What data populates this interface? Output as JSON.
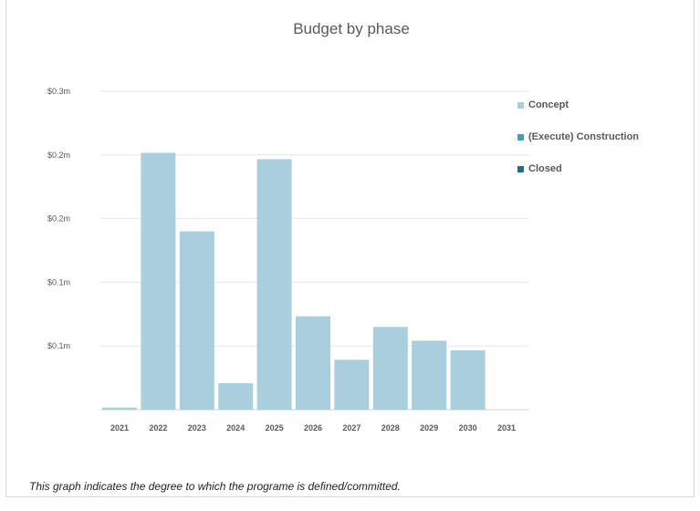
{
  "chart_data": {
    "type": "bar",
    "title": "Budget by phase",
    "categories": [
      "2021",
      "2022",
      "2023",
      "2024",
      "2025",
      "2026",
      "2027",
      "2028",
      "2029",
      "2030",
      "2031"
    ],
    "series": [
      {
        "name": "Concept",
        "color": "#a9cfdf",
        "values": [
          0.002,
          0.242,
          0.168,
          0.025,
          0.236,
          0.088,
          0.047,
          0.078,
          0.065,
          0.056,
          0
        ]
      },
      {
        "name": "(Execute) Construction",
        "color": "#2ea6c4",
        "values": [
          0,
          0,
          0,
          0,
          0,
          0,
          0,
          0,
          0,
          0,
          0
        ]
      },
      {
        "name": "Closed",
        "color": "#1f6f8b",
        "values": [
          0,
          0,
          0,
          0,
          0,
          0,
          0,
          0,
          0,
          0,
          0
        ]
      }
    ],
    "yticks": [
      {
        "value": 0.06,
        "label": "$0.1m"
      },
      {
        "value": 0.12,
        "label": "$0.1m"
      },
      {
        "value": 0.18,
        "label": "$0.2m"
      },
      {
        "value": 0.24,
        "label": "$0.2m"
      },
      {
        "value": 0.3,
        "label": "$0.3m"
      }
    ],
    "ylim": [
      0,
      0.3
    ],
    "grid": true,
    "legend": "right"
  },
  "caption": "This graph indicates the degree to which the programe is defined/committed."
}
